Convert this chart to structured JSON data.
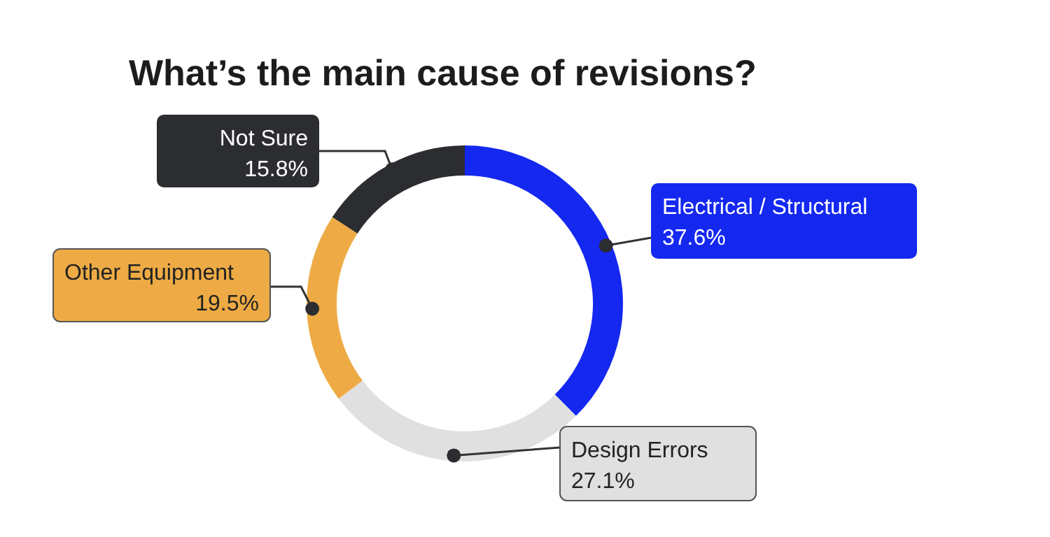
{
  "chart_data": {
    "type": "donut",
    "title": "What’s the main cause of revisions?",
    "categories": [
      "Electrical / Structural",
      "Design Errors",
      "Other Equipment",
      "Not Sure"
    ],
    "values": [
      37.6,
      27.1,
      19.5,
      15.8
    ],
    "value_labels": [
      "37.6%",
      "27.1%",
      "19.5%",
      "15.8%"
    ],
    "colors": [
      "#1428f0",
      "#e0e0e0",
      "#eeab45",
      "#2b2d31"
    ],
    "legend": false
  }
}
